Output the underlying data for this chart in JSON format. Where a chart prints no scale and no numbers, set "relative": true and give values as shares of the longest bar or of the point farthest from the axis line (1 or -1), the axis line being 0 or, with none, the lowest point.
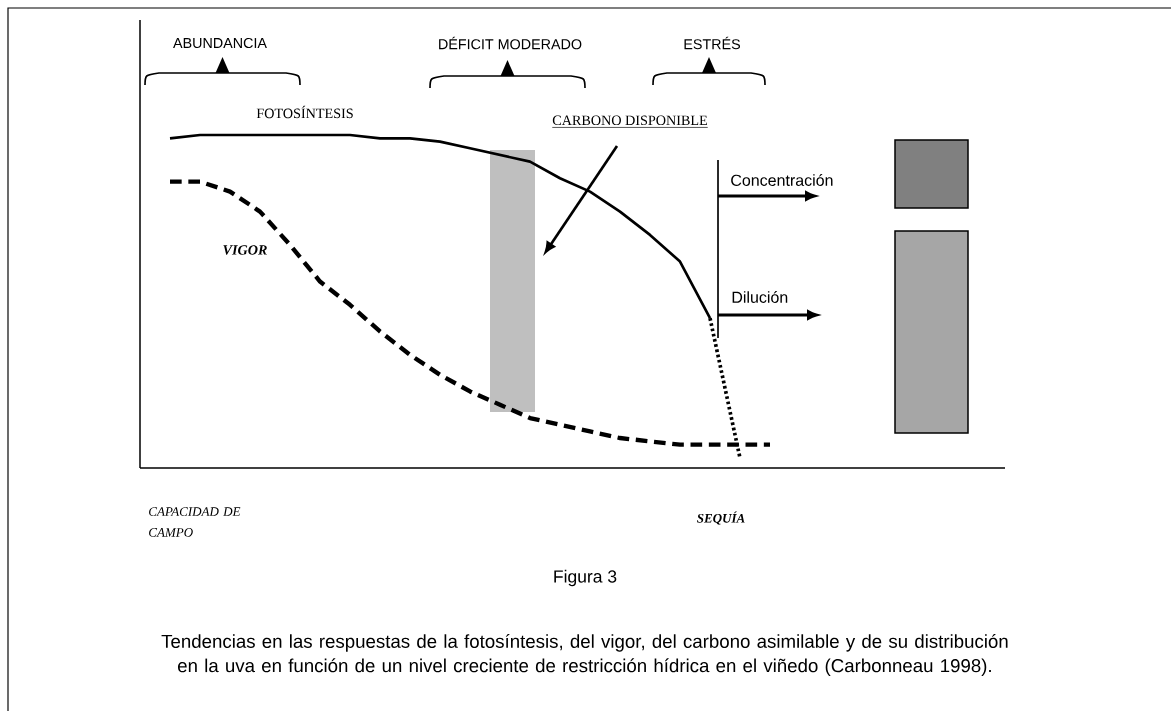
{
  "chart_data": {
    "type": "line",
    "relative": true,
    "title": "Figura 3",
    "categories": [
      null,
      null,
      null,
      null,
      null,
      null,
      null,
      null,
      null,
      null,
      null,
      null,
      null,
      null,
      null,
      null,
      null,
      null,
      null,
      null,
      null
    ],
    "series": [
      {
        "name": "FOTOSÍNTESIS",
        "color": "#000000",
        "line_style": "solid",
        "values": [
          0.99,
          1.0,
          1.0,
          1.0,
          1.0,
          1.0,
          1.0,
          0.99,
          0.99,
          0.98,
          0.96,
          0.94,
          0.92,
          0.87,
          0.83,
          0.77,
          0.7,
          0.62,
          0.45,
          null,
          null
        ]
      },
      {
        "color": "#000000",
        "line_style": "dotted",
        "values": [
          null,
          null,
          null,
          null,
          null,
          null,
          null,
          null,
          null,
          null,
          null,
          null,
          null,
          null,
          null,
          null,
          null,
          null,
          0.45,
          0.03,
          null
        ]
      },
      {
        "name": "VIGOR",
        "color": "#000000",
        "line_style": "dashed",
        "values": [
          0.86,
          0.86,
          0.83,
          0.77,
          0.67,
          0.56,
          0.49,
          0.41,
          0.34,
          0.28,
          0.23,
          0.19,
          0.15,
          0.13,
          0.11,
          0.09,
          0.08,
          0.07,
          0.07,
          0.07,
          0.07
        ]
      }
    ],
    "marker": "none",
    "annotations": [
      "ABUNDANCIA",
      "DÉFICIT MODERADO",
      "ESTRÉS",
      "CARBONO DISPONIBLE",
      "Concentración",
      "Dilución",
      "CAPACIDAD DE CAMPO",
      "SEQUÍA",
      "Tendencias en las respuestas de la fotosíntesis, del vigor, del carbono asimilable y de su distribución en la uva en función de un nivel creciente de restricción hídrica en el viñedo (Carbonneau 1998)."
    ]
  }
}
